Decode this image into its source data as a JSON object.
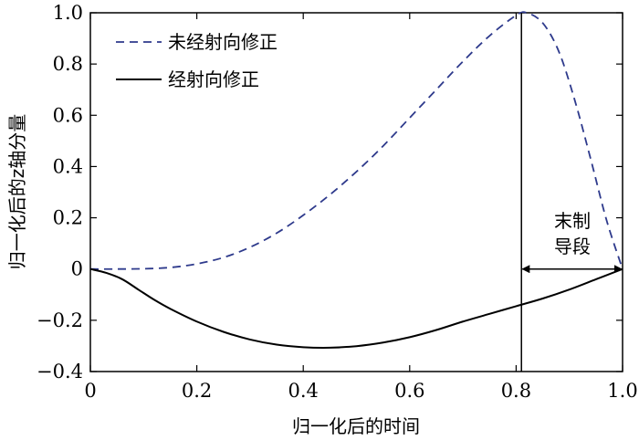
{
  "chart_data": {
    "type": "line",
    "xlabel": "归一化后的时间",
    "ylabel": "归一化后的z轴分量",
    "xlim": [
      0,
      1.0
    ],
    "ylim": [
      -0.4,
      1.0
    ],
    "x_ticks": [
      "0",
      "0.2",
      "0.4",
      "0.6",
      "0.8",
      "1.0"
    ],
    "y_ticks": [
      "1.0",
      "0.8",
      "0.6",
      "0.4",
      "0.2",
      "0",
      "−0.2",
      "−0.4"
    ],
    "grid": false,
    "legend_position": "top-left",
    "series": [
      {
        "name": "未经射向修正",
        "style": "dashed",
        "color": "#2e3a8c",
        "x": [
          0,
          0.05,
          0.1,
          0.15,
          0.2,
          0.25,
          0.3,
          0.35,
          0.4,
          0.45,
          0.5,
          0.55,
          0.6,
          0.65,
          0.7,
          0.75,
          0.8,
          0.82,
          0.85,
          0.88,
          0.91,
          0.94,
          0.97,
          1.0
        ],
        "y": [
          0,
          0,
          0.001,
          0.006,
          0.02,
          0.045,
          0.085,
          0.14,
          0.21,
          0.29,
          0.38,
          0.48,
          0.59,
          0.7,
          0.81,
          0.91,
          0.99,
          1.0,
          0.96,
          0.85,
          0.66,
          0.43,
          0.19,
          0.0
        ]
      },
      {
        "name": "经射向修正",
        "style": "solid",
        "color": "#000000",
        "x": [
          0,
          0.03,
          0.06,
          0.09,
          0.12,
          0.15,
          0.2,
          0.25,
          0.3,
          0.35,
          0.4,
          0.45,
          0.5,
          0.55,
          0.6,
          0.65,
          0.7,
          0.75,
          0.8,
          0.85,
          0.9,
          0.95,
          1.0
        ],
        "y": [
          0,
          -0.015,
          -0.04,
          -0.08,
          -0.12,
          -0.155,
          -0.205,
          -0.245,
          -0.275,
          -0.295,
          -0.305,
          -0.307,
          -0.301,
          -0.287,
          -0.266,
          -0.238,
          -0.205,
          -0.175,
          -0.145,
          -0.115,
          -0.08,
          -0.04,
          0
        ]
      }
    ],
    "annotations": {
      "vertical_line_x": 0.81,
      "arrow_from_x": 0.81,
      "arrow_to_x": 1.0,
      "arrow_y": 0,
      "label_lines": [
        "末制",
        "导段"
      ]
    }
  }
}
